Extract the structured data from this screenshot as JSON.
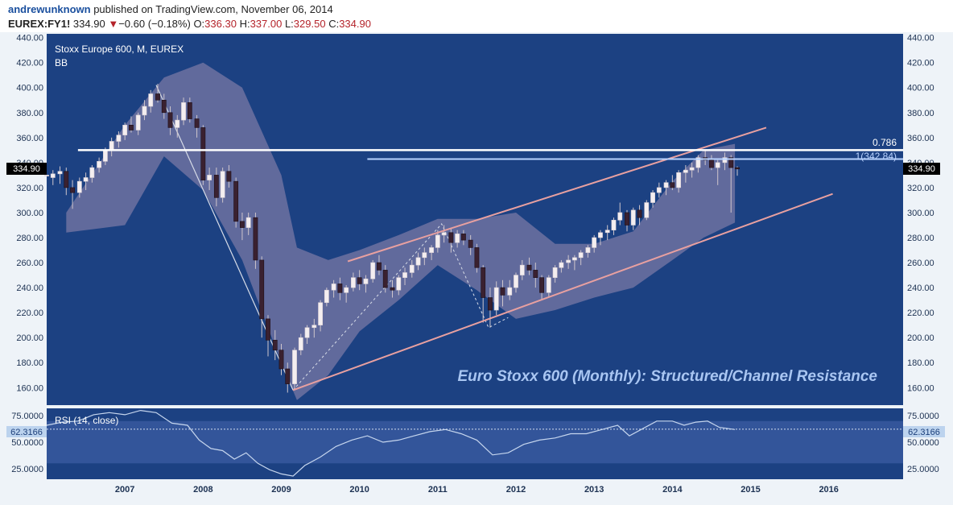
{
  "header": {
    "author": "andrewunknown",
    "published": "published on TradingView.com, November 06, 2014",
    "symbol": "EUREX:FY1!",
    "last": "334.90",
    "change_arrow": "▼",
    "change": "−0.60 (−0.18%)",
    "o_label": "O:",
    "o": "336.30",
    "h_label": "H:",
    "h": "337.00",
    "l_label": "L:",
    "l": "329.50",
    "c_label": "C:",
    "c": "334.90"
  },
  "legend": {
    "title": "Stoxx Europe 600, M, EUREX",
    "indicator": "BB"
  },
  "annotation": "Euro Stoxx 600 (Monthly): Structured/Channel Resistance",
  "fib_labels": {
    "upper": "0.786",
    "lower": "1(342.84)"
  },
  "price_badge": "334.90",
  "rsi": {
    "label": "RSI (14, close)",
    "badge": "62.3166",
    "ticks": [
      "75.0000",
      "50.0000",
      "25.0000"
    ]
  },
  "colors": {
    "background": "#1c4182",
    "band": "#7d7aa6",
    "bull": "#f4eef0",
    "bear": "#3a2130",
    "channel": "#e8a0a0",
    "fib": "#ffffff",
    "frame": "#eef3f8",
    "rsi_band": "#33559a"
  },
  "chart_data": {
    "type": "candlestick",
    "title": "Stoxx Europe 600, M, EUREX",
    "y_ticks": [
      "440.00",
      "420.00",
      "400.00",
      "380.00",
      "360.00",
      "340.00",
      "320.00",
      "300.00",
      "280.00",
      "260.00",
      "240.00",
      "220.00",
      "200.00",
      "180.00",
      "160.00"
    ],
    "ylim": [
      146,
      443
    ],
    "x_ticks": [
      "2007",
      "2008",
      "2009",
      "2010",
      "2011",
      "2012",
      "2013",
      "2014",
      "2015",
      "2016"
    ],
    "xlim": [
      2006.0,
      2016.95
    ],
    "candles": [
      [
        2006.0,
        330,
        330,
        330,
        330
      ],
      [
        2006.08,
        328,
        334,
        322,
        331
      ],
      [
        2006.17,
        331,
        337,
        323,
        333
      ],
      [
        2006.25,
        333,
        336,
        314,
        320
      ],
      [
        2006.33,
        320,
        326,
        303,
        316
      ],
      [
        2006.42,
        316,
        328,
        312,
        325
      ],
      [
        2006.5,
        325,
        332,
        318,
        328
      ],
      [
        2006.58,
        328,
        338,
        324,
        336
      ],
      [
        2006.67,
        336,
        344,
        332,
        341
      ],
      [
        2006.75,
        341,
        352,
        338,
        350
      ],
      [
        2006.83,
        350,
        360,
        345,
        357
      ],
      [
        2006.92,
        357,
        365,
        352,
        362
      ],
      [
        2007.0,
        362,
        372,
        358,
        370
      ],
      [
        2007.08,
        370,
        377,
        364,
        366
      ],
      [
        2007.17,
        366,
        380,
        362,
        378
      ],
      [
        2007.25,
        378,
        390,
        374,
        385
      ],
      [
        2007.33,
        385,
        398,
        380,
        395
      ],
      [
        2007.42,
        395,
        403,
        388,
        390
      ],
      [
        2007.5,
        390,
        395,
        375,
        380
      ],
      [
        2007.58,
        380,
        385,
        362,
        368
      ],
      [
        2007.67,
        368,
        378,
        360,
        374
      ],
      [
        2007.75,
        374,
        392,
        370,
        388
      ],
      [
        2007.83,
        388,
        392,
        372,
        375
      ],
      [
        2007.92,
        375,
        378,
        360,
        368
      ],
      [
        2008.0,
        368,
        370,
        322,
        326
      ],
      [
        2008.08,
        326,
        336,
        318,
        330
      ],
      [
        2008.17,
        330,
        336,
        305,
        312
      ],
      [
        2008.25,
        312,
        336,
        308,
        333
      ],
      [
        2008.33,
        333,
        338,
        320,
        325
      ],
      [
        2008.42,
        325,
        328,
        288,
        293
      ],
      [
        2008.5,
        293,
        300,
        278,
        288
      ],
      [
        2008.58,
        288,
        300,
        282,
        296
      ],
      [
        2008.67,
        296,
        300,
        255,
        262
      ],
      [
        2008.75,
        262,
        265,
        200,
        215
      ],
      [
        2008.83,
        215,
        218,
        185,
        198
      ],
      [
        2008.92,
        198,
        206,
        182,
        190
      ],
      [
        2009.0,
        190,
        195,
        170,
        175
      ],
      [
        2009.08,
        175,
        180,
        156,
        163
      ],
      [
        2009.17,
        163,
        192,
        158,
        190
      ],
      [
        2009.25,
        190,
        203,
        186,
        200
      ],
      [
        2009.33,
        200,
        210,
        195,
        208
      ],
      [
        2009.42,
        208,
        215,
        200,
        210
      ],
      [
        2009.5,
        210,
        230,
        205,
        228
      ],
      [
        2009.58,
        228,
        240,
        225,
        238
      ],
      [
        2009.67,
        238,
        246,
        232,
        243
      ],
      [
        2009.75,
        243,
        248,
        230,
        236
      ],
      [
        2009.83,
        236,
        242,
        228,
        240
      ],
      [
        2009.92,
        240,
        252,
        237,
        248
      ],
      [
        2010.0,
        248,
        254,
        238,
        243
      ],
      [
        2010.08,
        243,
        250,
        236,
        247
      ],
      [
        2010.17,
        247,
        262,
        244,
        260
      ],
      [
        2010.25,
        260,
        266,
        250,
        254
      ],
      [
        2010.33,
        254,
        258,
        236,
        240
      ],
      [
        2010.42,
        240,
        246,
        232,
        238
      ],
      [
        2010.5,
        238,
        250,
        234,
        248
      ],
      [
        2010.58,
        248,
        256,
        242,
        252
      ],
      [
        2010.67,
        252,
        262,
        248,
        258
      ],
      [
        2010.75,
        258,
        268,
        254,
        264
      ],
      [
        2010.83,
        264,
        272,
        258,
        268
      ],
      [
        2010.92,
        268,
        274,
        262,
        272
      ],
      [
        2011.0,
        272,
        286,
        268,
        282
      ],
      [
        2011.08,
        282,
        290,
        276,
        284
      ],
      [
        2011.17,
        284,
        288,
        268,
        276
      ],
      [
        2011.25,
        276,
        286,
        272,
        283
      ],
      [
        2011.33,
        283,
        286,
        274,
        278
      ],
      [
        2011.42,
        278,
        282,
        266,
        272
      ],
      [
        2011.5,
        272,
        275,
        252,
        256
      ],
      [
        2011.58,
        256,
        258,
        212,
        232
      ],
      [
        2011.67,
        232,
        240,
        208,
        222
      ],
      [
        2011.75,
        222,
        245,
        218,
        240
      ],
      [
        2011.83,
        240,
        246,
        225,
        234
      ],
      [
        2011.92,
        234,
        246,
        230,
        240
      ],
      [
        2012.0,
        240,
        252,
        236,
        250
      ],
      [
        2012.08,
        250,
        262,
        246,
        258
      ],
      [
        2012.17,
        258,
        264,
        250,
        254
      ],
      [
        2012.25,
        254,
        260,
        240,
        248
      ],
      [
        2012.33,
        248,
        250,
        230,
        236
      ],
      [
        2012.42,
        236,
        250,
        232,
        248
      ],
      [
        2012.5,
        248,
        258,
        244,
        256
      ],
      [
        2012.58,
        256,
        262,
        252,
        260
      ],
      [
        2012.67,
        260,
        266,
        255,
        262
      ],
      [
        2012.75,
        262,
        266,
        254,
        264
      ],
      [
        2012.83,
        264,
        270,
        258,
        268
      ],
      [
        2012.92,
        268,
        274,
        264,
        272
      ],
      [
        2013.0,
        272,
        282,
        268,
        280
      ],
      [
        2013.08,
        280,
        286,
        274,
        284
      ],
      [
        2013.17,
        284,
        290,
        278,
        286
      ],
      [
        2013.25,
        286,
        296,
        282,
        294
      ],
      [
        2013.33,
        294,
        308,
        290,
        300
      ],
      [
        2013.42,
        300,
        302,
        285,
        290
      ],
      [
        2013.5,
        290,
        304,
        286,
        302
      ],
      [
        2013.58,
        302,
        306,
        290,
        296
      ],
      [
        2013.67,
        296,
        310,
        294,
        308
      ],
      [
        2013.75,
        308,
        318,
        304,
        316
      ],
      [
        2013.83,
        316,
        324,
        312,
        320
      ],
      [
        2013.92,
        320,
        326,
        314,
        324
      ],
      [
        2014.0,
        324,
        330,
        318,
        320
      ],
      [
        2014.08,
        320,
        334,
        316,
        332
      ],
      [
        2014.17,
        332,
        338,
        324,
        334
      ],
      [
        2014.25,
        334,
        340,
        328,
        336
      ],
      [
        2014.33,
        336,
        346,
        332,
        344
      ],
      [
        2014.42,
        344,
        350,
        338,
        342
      ],
      [
        2014.5,
        342,
        346,
        334,
        336
      ],
      [
        2014.58,
        336,
        342,
        322,
        340
      ],
      [
        2014.67,
        340,
        348,
        334,
        344
      ],
      [
        2014.75,
        344,
        346,
        300,
        336
      ],
      [
        2014.83,
        336,
        337,
        329.5,
        334.9
      ]
    ],
    "bollinger": {
      "x": [
        2006.25,
        2007.0,
        2007.5,
        2008.0,
        2008.5,
        2009.0,
        2009.2,
        2009.6,
        2010.0,
        2010.5,
        2011.0,
        2011.5,
        2012.0,
        2012.5,
        2013.0,
        2013.5,
        2014.0,
        2014.4,
        2014.8
      ],
      "upper": [
        300,
        370,
        408,
        420,
        400,
        330,
        272,
        262,
        270,
        282,
        295,
        295,
        300,
        275,
        275,
        285,
        325,
        350,
        355
      ],
      "lower": [
        284,
        290,
        345,
        318,
        262,
        180,
        150,
        170,
        205,
        230,
        258,
        238,
        215,
        222,
        232,
        240,
        262,
        280,
        292
      ]
    },
    "channel_lines": [
      {
        "x": [
          2009.15,
          2016.05
        ],
        "y": [
          158,
          315
        ]
      },
      {
        "x": [
          2009.85,
          2015.2
        ],
        "y": [
          261,
          368
        ]
      }
    ],
    "zigzag_solid": {
      "x": [
        2007.4,
        2009.15
      ],
      "y": [
        402,
        158
      ]
    },
    "zigzag_dotted": {
      "x": [
        2009.15,
        2011.05,
        2011.65,
        2011.9
      ],
      "y": [
        158,
        291,
        208,
        216
      ]
    },
    "fib_levels": [
      {
        "label": "0.786",
        "y": 350,
        "x": [
          2006.4,
          2016.95
        ]
      },
      {
        "label": "1(342.84)",
        "y": 342.84,
        "x": [
          2010.1,
          2016.95
        ]
      }
    ],
    "rsi_data": {
      "ylim": [
        15,
        82
      ],
      "band": [
        30,
        70
      ],
      "x": [
        2006.0,
        2006.2,
        2006.4,
        2006.6,
        2006.8,
        2007.0,
        2007.2,
        2007.4,
        2007.6,
        2007.8,
        2007.95,
        2008.1,
        2008.25,
        2008.4,
        2008.55,
        2008.7,
        2008.85,
        2009.0,
        2009.15,
        2009.3,
        2009.5,
        2009.7,
        2009.9,
        2010.1,
        2010.3,
        2010.5,
        2010.7,
        2010.9,
        2011.1,
        2011.3,
        2011.5,
        2011.7,
        2011.9,
        2012.1,
        2012.3,
        2012.5,
        2012.7,
        2012.9,
        2013.1,
        2013.3,
        2013.45,
        2013.6,
        2013.8,
        2014.0,
        2014.15,
        2014.3,
        2014.45,
        2014.6,
        2014.8
      ],
      "y": [
        66,
        69,
        70,
        76,
        78,
        76,
        80,
        78,
        68,
        66,
        52,
        44,
        42,
        34,
        40,
        30,
        24,
        20,
        18,
        28,
        36,
        46,
        52,
        56,
        50,
        52,
        56,
        60,
        62,
        58,
        52,
        38,
        40,
        48,
        52,
        54,
        58,
        58,
        62,
        66,
        56,
        62,
        70,
        70,
        66,
        69,
        70,
        64,
        62
      ]
    }
  }
}
